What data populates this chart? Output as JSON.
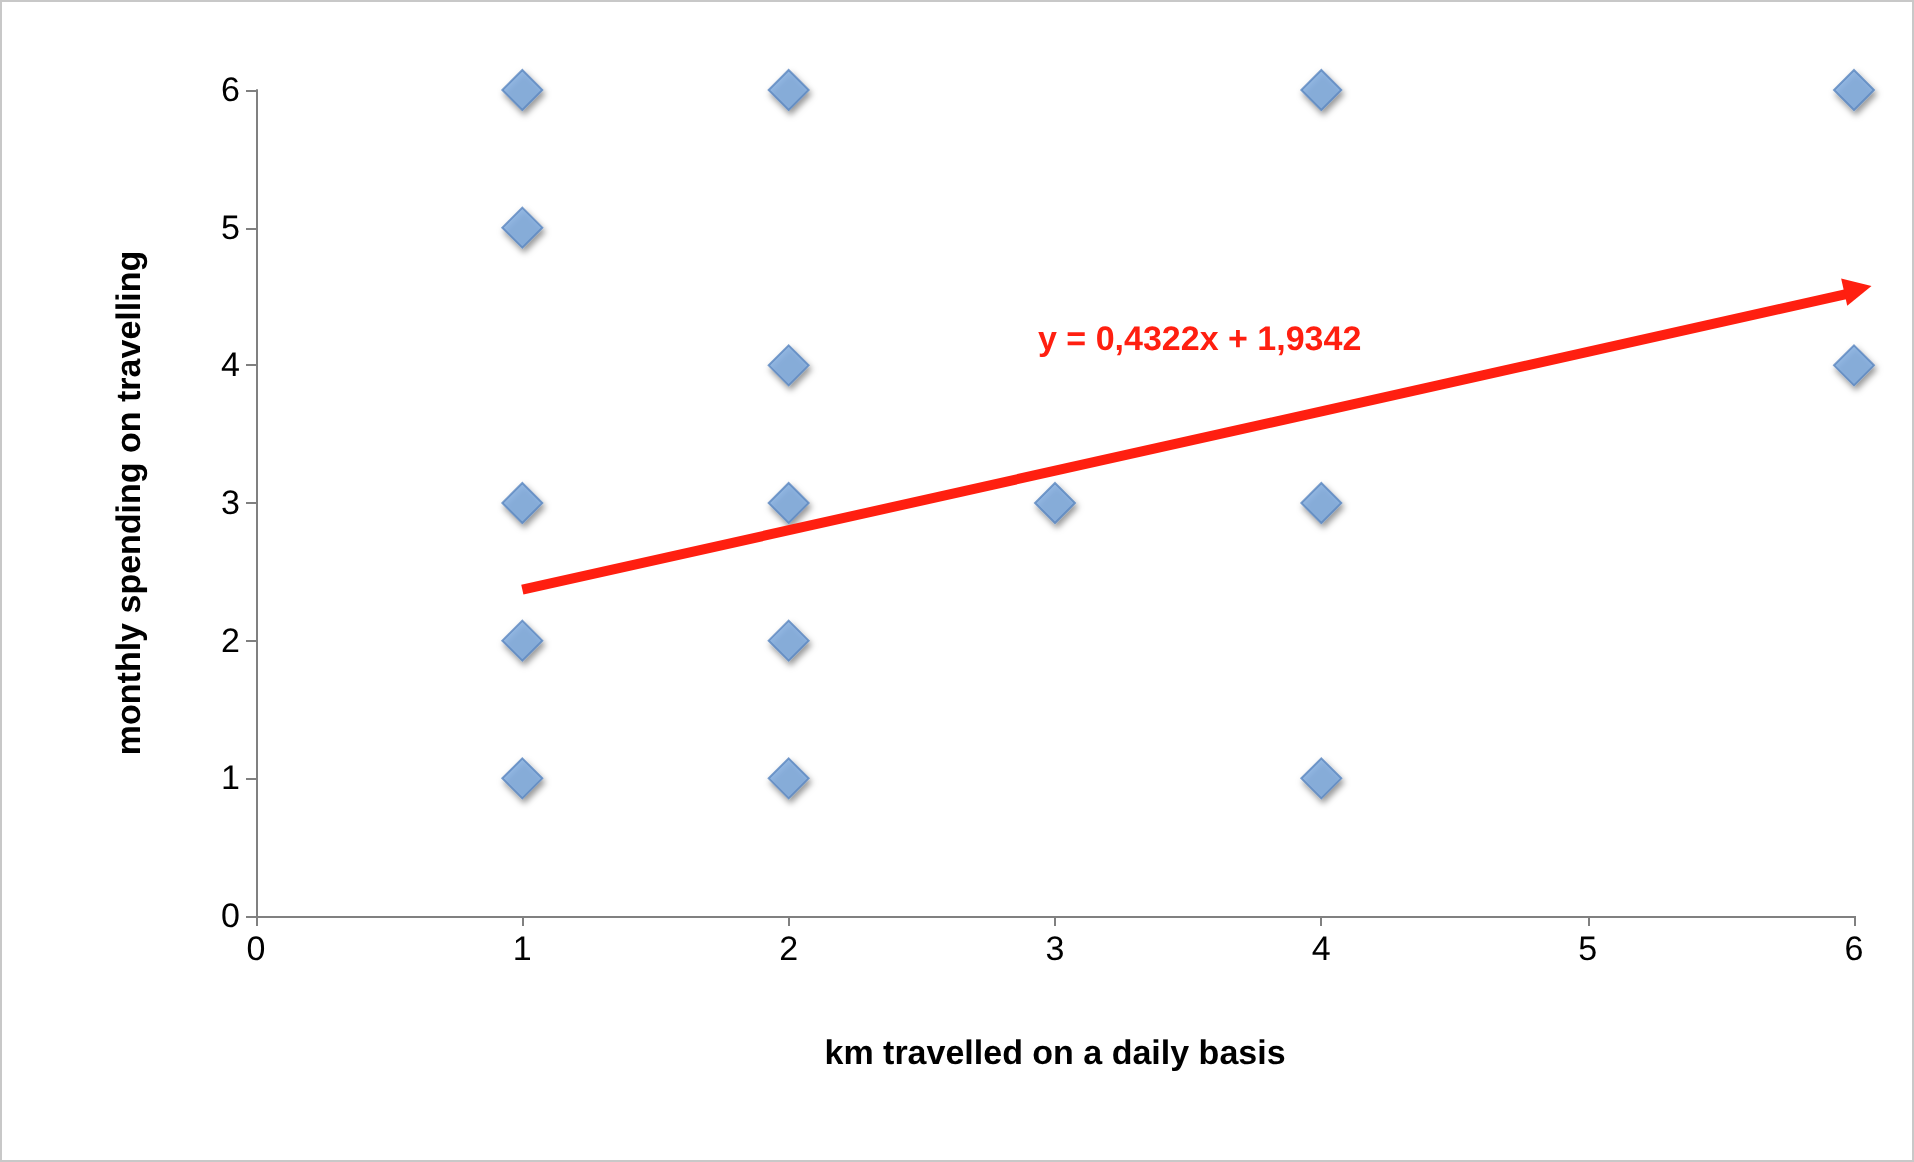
{
  "chart_data": {
    "type": "scatter",
    "xlabel": "km travelled on a daily basis",
    "ylabel": "monthly spending on travelling",
    "xlim": [
      0,
      6
    ],
    "xticks": [
      0,
      1,
      2,
      3,
      4,
      5,
      6
    ],
    "ylim": [
      0,
      6
    ],
    "yticks": [
      0,
      1,
      2,
      3,
      4,
      5,
      6
    ],
    "grid": false,
    "series": [
      {
        "color": "#7ba7dc",
        "marker": "diamond",
        "x": [
          1,
          1,
          1,
          1,
          1,
          2,
          2,
          2,
          2,
          2,
          3,
          4,
          4,
          4,
          6,
          6
        ],
        "values": [
          6,
          5,
          3,
          2,
          1,
          6,
          4,
          3,
          2,
          1,
          3,
          6,
          3,
          1,
          6,
          4
        ]
      },
      {
        "type": "line",
        "color": "#ff1f10",
        "line_style": "solid",
        "x": [
          1,
          6
        ],
        "values": [
          2.37,
          4.53
        ]
      }
    ],
    "annotations": [
      "y = 0,4322x + 1,9342"
    ]
  }
}
